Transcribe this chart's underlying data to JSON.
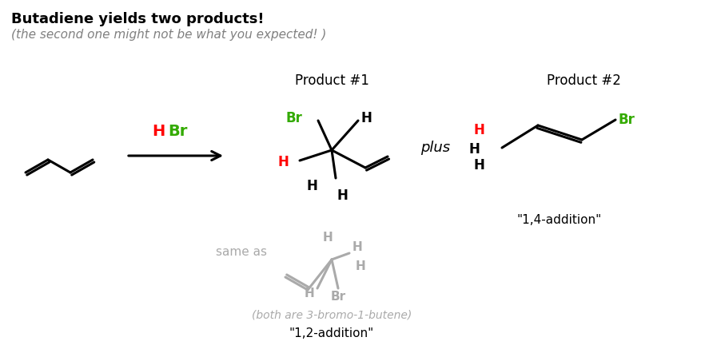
{
  "title_bold": "Butadiene yields two products!",
  "title_italic": "(the second one might not be what you expected! )",
  "title_bold_color": "#000000",
  "title_italic_color": "#808080",
  "background_color": "#ffffff",
  "product1_label": "Product #1",
  "product2_label": "Product #2",
  "hbr_h_color": "#ff0000",
  "hbr_br_color": "#33aa00",
  "black": "#000000",
  "gray": "#aaaaaa",
  "red": "#ff0000",
  "green": "#33aa00",
  "plus_text": "plus",
  "addition12_label": "\"1,2-addition\"",
  "addition14_label": "\"1,4-addition\"",
  "same_as_text": "same as",
  "both_text": "(both are 3-bromo-1-butene)"
}
